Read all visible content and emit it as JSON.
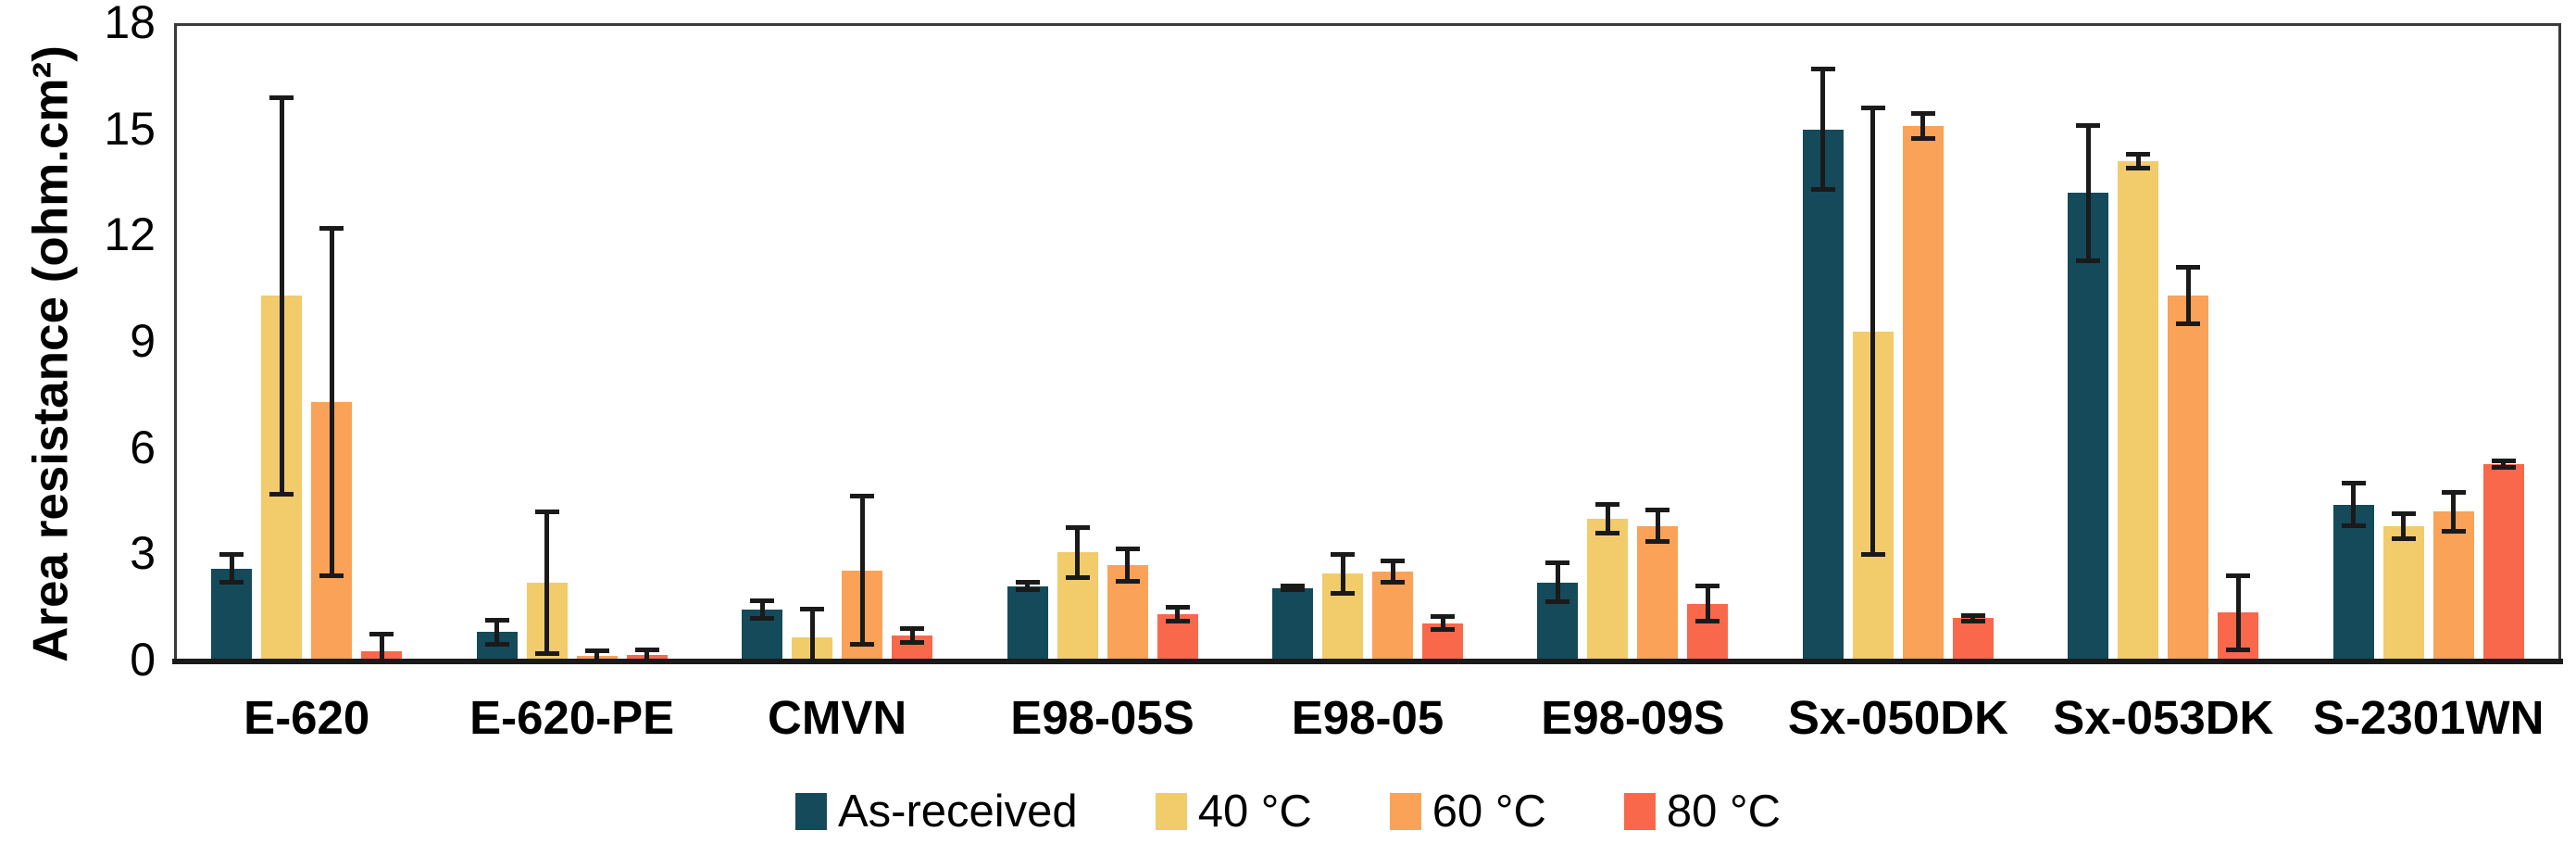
{
  "figure": {
    "background": "#ffffff",
    "plot_border_color": "#3a3a3a",
    "axis_line_color": "#1a1a1a",
    "error_bar_color": "#1a1a1a"
  },
  "chart_data": {
    "type": "bar",
    "title": "",
    "xlabel": "",
    "ylabel": "Area resistance (ohm.cm²)",
    "ylim": [
      0,
      18
    ],
    "y_ticks": [
      0,
      3,
      6,
      9,
      12,
      15,
      18
    ],
    "grid": false,
    "error_bars": true,
    "legend_position": "bottom",
    "categories": [
      "E-620",
      "E-620-PE",
      "CMVN",
      "E98-05S",
      "E98-05",
      "E98-09S",
      "Sx-050DK",
      "Sx-053DK",
      "S-2301WN"
    ],
    "series": [
      {
        "name": "As-received",
        "color": "#144a5a",
        "values": [
          2.6,
          0.8,
          1.45,
          2.1,
          2.05,
          2.2,
          15.0,
          13.2,
          4.4
        ],
        "errors": [
          0.4,
          0.35,
          0.25,
          0.1,
          0.05,
          0.55,
          1.7,
          1.9,
          0.6
        ]
      },
      {
        "name": "40 °C",
        "color": "#f2cb6b",
        "values": [
          10.3,
          2.2,
          0.65,
          3.05,
          2.45,
          4.0,
          9.3,
          14.1,
          3.8
        ],
        "errors": [
          5.6,
          2.0,
          0.8,
          0.7,
          0.55,
          0.4,
          6.3,
          0.2,
          0.35
        ]
      },
      {
        "name": "60 °C",
        "color": "#faa257",
        "values": [
          7.3,
          0.12,
          2.55,
          2.7,
          2.5,
          3.8,
          15.1,
          10.3,
          4.2
        ],
        "errors": [
          4.9,
          0.15,
          2.1,
          0.45,
          0.3,
          0.45,
          0.35,
          0.8,
          0.55
        ]
      },
      {
        "name": "80 °C",
        "color": "#f9684b",
        "values": [
          0.25,
          0.15,
          0.7,
          1.3,
          1.05,
          1.6,
          1.2,
          1.35,
          5.55
        ],
        "errors": [
          0.5,
          0.15,
          0.2,
          0.2,
          0.18,
          0.5,
          0.08,
          1.05,
          0.1
        ]
      }
    ]
  }
}
